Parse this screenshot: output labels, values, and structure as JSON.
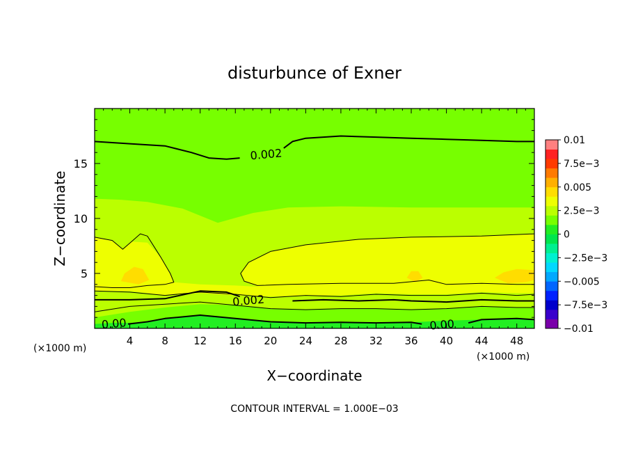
{
  "chart_data": {
    "type": "heatmap",
    "title": "disturbunce of Exner",
    "xlabel": "X−coordinate",
    "ylabel": "Z−coordinate",
    "x_unit_left": "(×1000 m)",
    "x_unit_right": "(×1000 m)",
    "xlim": [
      0,
      50
    ],
    "ylim": [
      0,
      20
    ],
    "x_ticks": [
      4,
      8,
      12,
      16,
      20,
      24,
      28,
      32,
      36,
      40,
      44,
      48
    ],
    "y_ticks": [
      5,
      10,
      15
    ],
    "x_tick_labels": [
      "4",
      "8",
      "12",
      "16",
      "20",
      "24",
      "28",
      "32",
      "36",
      "40",
      "44",
      "48"
    ],
    "y_tick_labels": [
      "5",
      "10",
      "15"
    ],
    "footer": "CONTOUR INTERVAL = 1.000E−03",
    "contour_labels": [
      {
        "text": "0.002",
        "x": 19.5,
        "z": 15.8
      },
      {
        "text": "0.002",
        "x": 17.5,
        "z": 2.5
      },
      {
        "text": "0.00",
        "x": 2.2,
        "z": 0.4
      },
      {
        "text": "0.00",
        "x": 39.5,
        "z": 0.3
      }
    ],
    "colorbar": {
      "tick_labels": [
        "0.01",
        "7.5e−3",
        "0.005",
        "2.5e−3",
        "0",
        "−2.5e−3",
        "−0.005",
        "−7.5e−3",
        "−0.01"
      ],
      "levels": [
        {
          "lo": -0.01,
          "hi": -0.009,
          "color": "#7a00aa"
        },
        {
          "lo": -0.009,
          "hi": -0.008,
          "color": "#3a00cc"
        },
        {
          "lo": -0.008,
          "hi": -0.007,
          "color": "#0000cc"
        },
        {
          "lo": -0.007,
          "hi": -0.006,
          "color": "#0022ff"
        },
        {
          "lo": -0.006,
          "hi": -0.005,
          "color": "#0066ff"
        },
        {
          "lo": -0.005,
          "hi": -0.004,
          "color": "#00a8ff"
        },
        {
          "lo": -0.004,
          "hi": -0.003,
          "color": "#00d8ff"
        },
        {
          "lo": -0.003,
          "hi": -0.002,
          "color": "#00f0d0"
        },
        {
          "lo": -0.002,
          "hi": -0.001,
          "color": "#00f090"
        },
        {
          "lo": -0.001,
          "hi": 0.0,
          "color": "#00e64d"
        },
        {
          "lo": 0.0,
          "hi": 0.001,
          "color": "#22ee22"
        },
        {
          "lo": 0.001,
          "hi": 0.002,
          "color": "#77ff00"
        },
        {
          "lo": 0.002,
          "hi": 0.003,
          "color": "#bbff00"
        },
        {
          "lo": 0.003,
          "hi": 0.004,
          "color": "#eeff00"
        },
        {
          "lo": 0.004,
          "hi": 0.005,
          "color": "#ffdd00"
        },
        {
          "lo": 0.005,
          "hi": 0.006,
          "color": "#ffb000"
        },
        {
          "lo": 0.006,
          "hi": 0.007,
          "color": "#ff7a00"
        },
        {
          "lo": 0.007,
          "hi": 0.008,
          "color": "#ff3a00"
        },
        {
          "lo": 0.008,
          "hi": 0.009,
          "color": "#ff2222"
        },
        {
          "lo": 0.009,
          "hi": 0.01,
          "color": "#ff8080"
        }
      ]
    },
    "regions": [
      {
        "level": 0.0015,
        "points": [
          [
            0,
            0
          ],
          [
            50,
            0
          ],
          [
            50,
            20
          ],
          [
            0,
            20
          ]
        ]
      },
      {
        "level": 0.0025,
        "points": [
          [
            0,
            1.0
          ],
          [
            4,
            1.5
          ],
          [
            8,
            1.9
          ],
          [
            12,
            2.2
          ],
          [
            16,
            2.1
          ],
          [
            20,
            1.8
          ],
          [
            24,
            1.7
          ],
          [
            28,
            1.8
          ],
          [
            32,
            1.8
          ],
          [
            36,
            1.7
          ],
          [
            40,
            1.8
          ],
          [
            44,
            2.0
          ],
          [
            48,
            1.9
          ],
          [
            50,
            1.9
          ],
          [
            50,
            11.0
          ],
          [
            44,
            11.0
          ],
          [
            36,
            11.0
          ],
          [
            28,
            11.1
          ],
          [
            22,
            11.0
          ],
          [
            18,
            10.5
          ],
          [
            14,
            9.6
          ],
          [
            10,
            10.9
          ],
          [
            6,
            11.5
          ],
          [
            3,
            11.7
          ],
          [
            0,
            11.8
          ]
        ]
      },
      {
        "level": 0.0035,
        "points": [
          [
            0,
            3.4
          ],
          [
            4,
            3.4
          ],
          [
            8,
            3.0
          ],
          [
            12,
            3.2
          ],
          [
            16,
            3.0
          ],
          [
            20,
            2.9
          ],
          [
            24,
            3.0
          ],
          [
            28,
            3.0
          ],
          [
            32,
            3.2
          ],
          [
            36,
            3.1
          ],
          [
            40,
            3.1
          ],
          [
            44,
            3.3
          ],
          [
            48,
            3.2
          ],
          [
            50,
            3.2
          ],
          [
            50,
            8.6
          ],
          [
            44,
            8.4
          ],
          [
            36,
            8.3
          ],
          [
            30,
            8.1
          ],
          [
            24,
            7.6
          ],
          [
            20,
            7.0
          ],
          [
            17.5,
            6.0
          ],
          [
            16.6,
            5.0
          ],
          [
            17,
            4.3
          ],
          [
            18.5,
            3.8
          ],
          [
            16,
            3.9
          ],
          [
            12,
            4.0
          ],
          [
            9,
            4.2
          ],
          [
            8.6,
            5.0
          ],
          [
            7.5,
            6.5
          ],
          [
            6,
            7.8
          ],
          [
            4.2,
            7.9
          ],
          [
            3.2,
            7.2
          ],
          [
            2,
            8.0
          ],
          [
            0,
            8.3
          ]
        ]
      },
      {
        "level": 0.0045,
        "points": [
          [
            3.0,
            4.3
          ],
          [
            5.0,
            4.0
          ],
          [
            6.2,
            4.4
          ],
          [
            5.5,
            5.4
          ],
          [
            4.5,
            5.6
          ],
          [
            3.4,
            5.0
          ]
        ]
      },
      {
        "level": 0.0045,
        "points": [
          [
            35.5,
            4.6
          ],
          [
            36.5,
            4.2
          ],
          [
            37.3,
            4.6
          ],
          [
            36.8,
            5.2
          ],
          [
            36.0,
            5.2
          ]
        ]
      },
      {
        "level": 0.0045,
        "points": [
          [
            45.5,
            4.6
          ],
          [
            47,
            4.1
          ],
          [
            49,
            4.2
          ],
          [
            50,
            4.4
          ],
          [
            50,
            5.3
          ],
          [
            48,
            5.4
          ],
          [
            46.5,
            5.1
          ]
        ]
      },
      {
        "level": -0.0005,
        "points": [
          [
            0,
            0
          ],
          [
            50,
            0
          ],
          [
            50,
            0.1
          ],
          [
            44,
            0.15
          ],
          [
            36,
            0.1
          ],
          [
            30,
            0.0
          ]
        ]
      },
      {
        "level": 0.0005,
        "points": [
          [
            0,
            0
          ],
          [
            50,
            0
          ],
          [
            50,
            0.8
          ],
          [
            48,
            0.9
          ],
          [
            44,
            0.8
          ],
          [
            40,
            0.7
          ],
          [
            36,
            0.55
          ],
          [
            32,
            0.5
          ],
          [
            28,
            0.55
          ],
          [
            24,
            0.5
          ],
          [
            20,
            0.6
          ],
          [
            16,
            0.9
          ],
          [
            12,
            1.2
          ],
          [
            8,
            0.9
          ],
          [
            6,
            0.6
          ],
          [
            4,
            0.5
          ],
          [
            2,
            0.5
          ],
          [
            0,
            0.4
          ]
        ]
      }
    ],
    "contours": [
      {
        "level": 0.002,
        "thick": true,
        "points": [
          [
            0,
            17.0
          ],
          [
            4,
            16.8
          ],
          [
            8,
            16.6
          ],
          [
            11,
            16.0
          ],
          [
            13,
            15.5
          ],
          [
            15,
            15.4
          ],
          [
            16.5,
            15.5
          ]
        ]
      },
      {
        "level": 0.002,
        "thick": true,
        "points": [
          [
            21.5,
            16.4
          ],
          [
            22.5,
            17.0
          ],
          [
            24,
            17.3
          ],
          [
            28,
            17.5
          ],
          [
            32,
            17.4
          ],
          [
            36,
            17.3
          ],
          [
            40,
            17.2
          ],
          [
            44,
            17.1
          ],
          [
            48,
            17.0
          ],
          [
            50,
            17.0
          ]
        ]
      },
      {
        "level": 0.003,
        "thick": false,
        "points": [
          [
            0,
            8.3
          ],
          [
            2,
            8.0
          ],
          [
            3.2,
            7.2
          ],
          [
            4.2,
            7.9
          ],
          [
            5.2,
            8.6
          ],
          [
            6,
            8.4
          ],
          [
            7.5,
            6.5
          ],
          [
            8.6,
            5.0
          ],
          [
            9,
            4.2
          ],
          [
            8,
            4.0
          ],
          [
            6,
            3.9
          ],
          [
            4,
            3.7
          ],
          [
            2,
            3.7
          ],
          [
            0,
            3.8
          ]
        ]
      },
      {
        "level": 0.003,
        "thick": false,
        "points": [
          [
            50,
            8.6
          ],
          [
            44,
            8.4
          ],
          [
            36,
            8.3
          ],
          [
            30,
            8.1
          ],
          [
            24,
            7.6
          ],
          [
            20,
            7.0
          ],
          [
            17.5,
            6.0
          ],
          [
            16.6,
            5.0
          ],
          [
            17,
            4.3
          ],
          [
            18.5,
            3.9
          ],
          [
            22,
            4.0
          ],
          [
            28,
            4.1
          ],
          [
            34,
            4.1
          ],
          [
            38,
            4.4
          ],
          [
            40,
            4.0
          ],
          [
            44,
            4.1
          ],
          [
            48,
            4.0
          ],
          [
            50,
            4.0
          ]
        ]
      },
      {
        "level": 0.003,
        "thick": false,
        "points": [
          [
            0,
            3.4
          ],
          [
            4,
            3.3
          ],
          [
            8,
            3.0
          ],
          [
            12,
            3.3
          ],
          [
            16,
            3.1
          ],
          [
            20,
            2.8
          ],
          [
            24,
            3.0
          ],
          [
            28,
            2.9
          ],
          [
            32,
            3.1
          ],
          [
            36,
            3.0
          ],
          [
            40,
            3.0
          ],
          [
            44,
            3.2
          ],
          [
            48,
            3.0
          ],
          [
            50,
            3.1
          ]
        ]
      },
      {
        "level": 0.002,
        "thick": true,
        "points": [
          [
            0,
            2.6
          ],
          [
            4,
            2.6
          ],
          [
            8,
            2.7
          ],
          [
            12,
            3.4
          ],
          [
            15,
            3.3
          ],
          [
            16.5,
            2.9
          ]
        ]
      },
      {
        "level": 0.002,
        "thick": true,
        "points": [
          [
            22.5,
            2.5
          ],
          [
            26,
            2.6
          ],
          [
            30,
            2.5
          ],
          [
            34,
            2.6
          ],
          [
            36,
            2.5
          ],
          [
            40,
            2.4
          ],
          [
            44,
            2.6
          ],
          [
            48,
            2.5
          ],
          [
            50,
            2.5
          ]
        ]
      },
      {
        "level": 0.001,
        "thick": false,
        "points": [
          [
            0,
            1.5
          ],
          [
            4,
            2.0
          ],
          [
            8,
            2.2
          ],
          [
            12,
            2.4
          ],
          [
            16,
            2.1
          ],
          [
            20,
            1.8
          ],
          [
            24,
            1.7
          ],
          [
            28,
            1.8
          ],
          [
            32,
            1.8
          ],
          [
            36,
            1.7
          ],
          [
            40,
            1.8
          ],
          [
            44,
            2.0
          ],
          [
            48,
            1.9
          ],
          [
            50,
            1.9
          ]
        ]
      },
      {
        "level": 0.0,
        "thick": true,
        "points": [
          [
            3.8,
            0.4
          ],
          [
            6,
            0.6
          ],
          [
            8,
            0.9
          ],
          [
            12,
            1.2
          ],
          [
            16,
            0.9
          ],
          [
            20,
            0.6
          ],
          [
            24,
            0.5
          ],
          [
            28,
            0.55
          ],
          [
            32,
            0.5
          ],
          [
            36,
            0.55
          ],
          [
            37.2,
            0.4
          ]
        ]
      },
      {
        "level": 0.0,
        "thick": true,
        "points": [
          [
            42.5,
            0.5
          ],
          [
            44,
            0.8
          ],
          [
            48,
            0.9
          ],
          [
            50,
            0.8
          ]
        ]
      }
    ]
  }
}
